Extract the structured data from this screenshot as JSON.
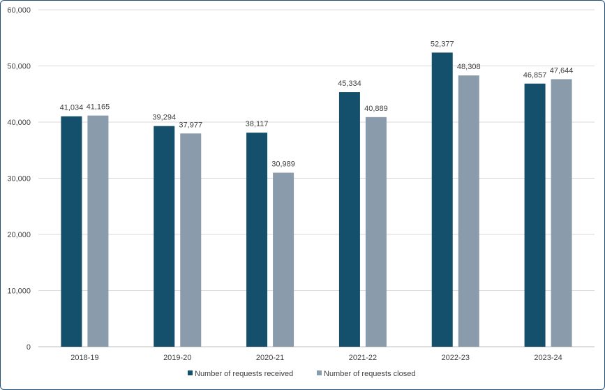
{
  "chart_data": {
    "type": "bar",
    "title": "",
    "xlabel": "",
    "ylabel": "",
    "categories": [
      "2018-19",
      "2019-20",
      "2020-21",
      "2021-22",
      "2022-23",
      "2023-24"
    ],
    "series": [
      {
        "name": "Number of requests received",
        "color": "#14506b",
        "values": [
          41034,
          39294,
          38117,
          45334,
          52377,
          46857
        ],
        "labels": [
          "41,034",
          "39,294",
          "38,117",
          "45,334",
          "52,377",
          "46,857"
        ]
      },
      {
        "name": "Number of requests closed",
        "color": "#8a9bab",
        "values": [
          41165,
          37977,
          30989,
          40889,
          48308,
          47644
        ],
        "labels": [
          "41,165",
          "37,977",
          "30,989",
          "40,889",
          "48,308",
          "47,644"
        ]
      }
    ],
    "ylim": [
      0,
      60000
    ],
    "yticks": [
      0,
      10000,
      20000,
      30000,
      40000,
      50000,
      60000
    ],
    "ytick_labels": [
      "0",
      "10,000",
      "20,000",
      "30,000",
      "40,000",
      "50,000",
      "60,000"
    ],
    "grid": true,
    "legend_position": "bottom"
  }
}
